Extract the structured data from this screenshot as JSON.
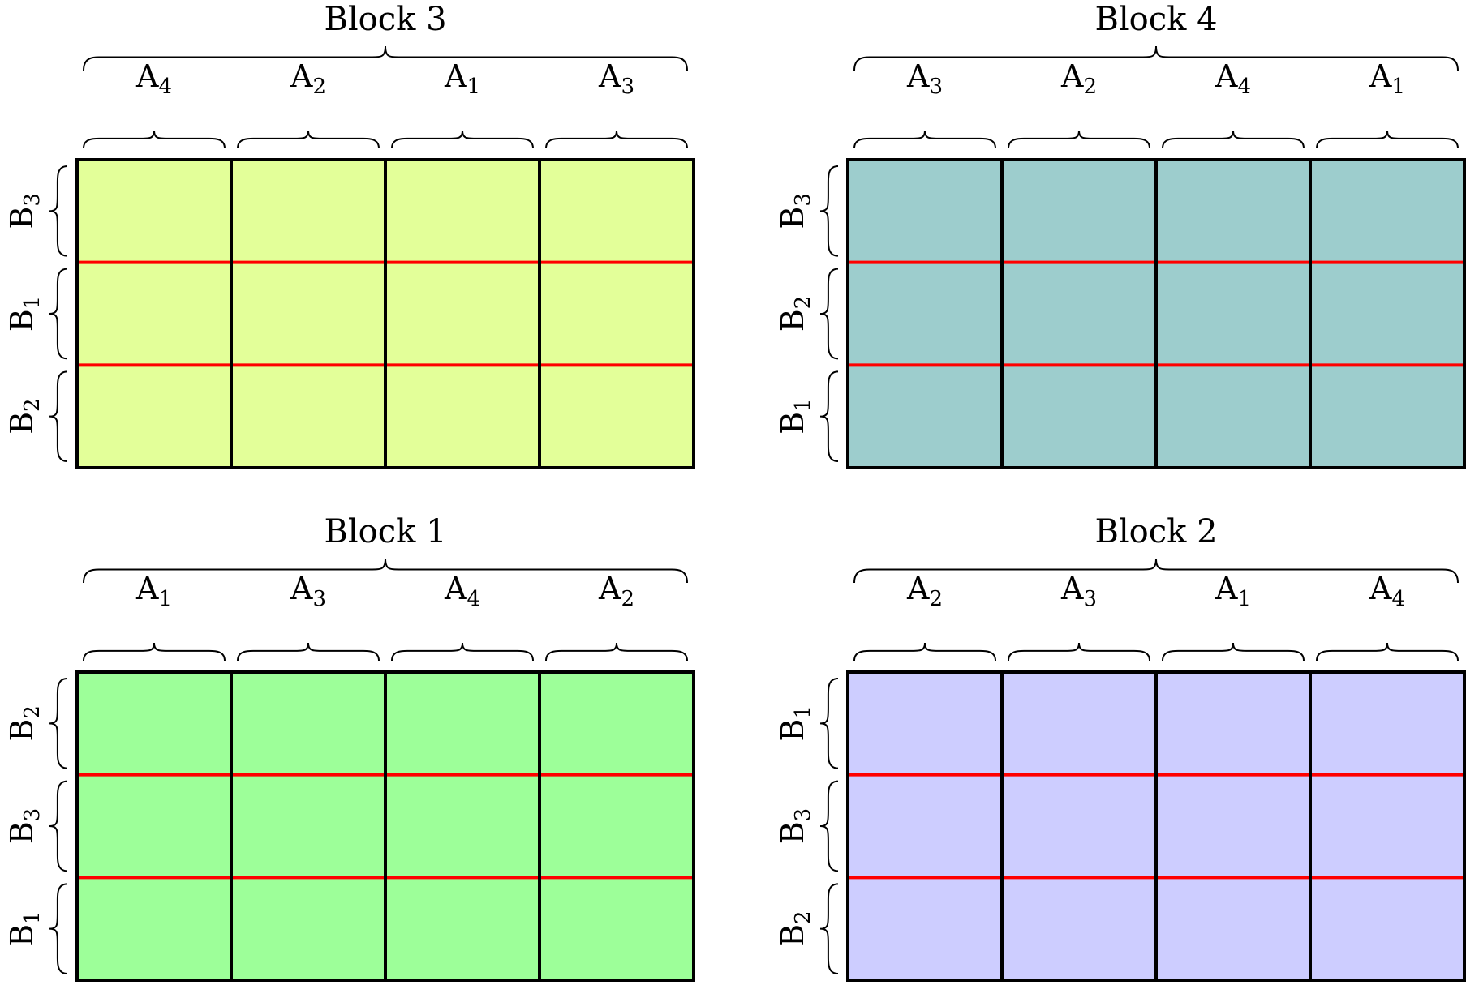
{
  "blocks": [
    {
      "title": "Block 3",
      "color": "#e3ff99",
      "columns": [
        {
          "letter": "A",
          "sub": "4"
        },
        {
          "letter": "A",
          "sub": "2"
        },
        {
          "letter": "A",
          "sub": "1"
        },
        {
          "letter": "A",
          "sub": "3"
        }
      ],
      "rows": [
        {
          "letter": "B",
          "sub": "3"
        },
        {
          "letter": "B",
          "sub": "1"
        },
        {
          "letter": "B",
          "sub": "2"
        }
      ]
    },
    {
      "title": "Block 4",
      "color": "#9dcdcd",
      "columns": [
        {
          "letter": "A",
          "sub": "3"
        },
        {
          "letter": "A",
          "sub": "2"
        },
        {
          "letter": "A",
          "sub": "4"
        },
        {
          "letter": "A",
          "sub": "1"
        }
      ],
      "rows": [
        {
          "letter": "B",
          "sub": "3"
        },
        {
          "letter": "B",
          "sub": "2"
        },
        {
          "letter": "B",
          "sub": "1"
        }
      ]
    },
    {
      "title": "Block 1",
      "color": "#9dff99",
      "columns": [
        {
          "letter": "A",
          "sub": "1"
        },
        {
          "letter": "A",
          "sub": "3"
        },
        {
          "letter": "A",
          "sub": "4"
        },
        {
          "letter": "A",
          "sub": "2"
        }
      ],
      "rows": [
        {
          "letter": "B",
          "sub": "2"
        },
        {
          "letter": "B",
          "sub": "3"
        },
        {
          "letter": "B",
          "sub": "1"
        }
      ]
    },
    {
      "title": "Block 2",
      "color": "#cdcdff",
      "columns": [
        {
          "letter": "A",
          "sub": "2"
        },
        {
          "letter": "A",
          "sub": "3"
        },
        {
          "letter": "A",
          "sub": "1"
        },
        {
          "letter": "A",
          "sub": "4"
        }
      ],
      "rows": [
        {
          "letter": "B",
          "sub": "1"
        },
        {
          "letter": "B",
          "sub": "3"
        },
        {
          "letter": "B",
          "sub": "2"
        }
      ]
    }
  ],
  "colors": {
    "grid_line": "#000000",
    "row_divider": "#ff0000"
  }
}
